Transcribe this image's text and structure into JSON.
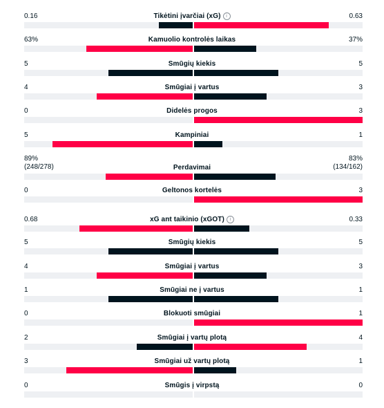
{
  "colors": {
    "winner": "#ff0046",
    "loser": "#00141e",
    "track": "#eef0f3"
  },
  "stats": [
    {
      "label": "Tikėtini įvarčiai (xG)",
      "home": "0.16",
      "away": "0.63",
      "home_val": 0.16,
      "away_val": 0.63,
      "info_icon": "info-icon",
      "info_glyph": "i"
    },
    {
      "label": "Kamuolio kontrolės laikas",
      "home": "63%",
      "away": "37%",
      "home_val": 63,
      "away_val": 37
    },
    {
      "label": "Smūgių kiekis",
      "home": "5",
      "away": "5",
      "home_val": 5,
      "away_val": 5
    },
    {
      "label": "Smūgiai į vartus",
      "home": "4",
      "away": "3",
      "home_val": 4,
      "away_val": 3
    },
    {
      "label": "Didelės progos",
      "home": "0",
      "away": "3",
      "home_val": 0,
      "away_val": 3
    },
    {
      "label": "Kampiniai",
      "home": "5",
      "away": "1",
      "home_val": 5,
      "away_val": 1
    },
    {
      "label": "Perdavimai",
      "home": "89%",
      "away": "83%",
      "home_sub": "(248/278)",
      "away_sub": "(134/162)",
      "home_val": 89,
      "away_val": 83,
      "two_line": true
    },
    {
      "label": "Geltonos kortelės",
      "home": "0",
      "away": "3",
      "home_val": 0,
      "away_val": 3
    },
    {
      "label": "xG ant taikinio (xGOT)",
      "home": "0.68",
      "away": "0.33",
      "home_val": 0.68,
      "away_val": 0.33,
      "info_icon": "info-icon",
      "info_glyph": "i"
    },
    {
      "label": "Smūgių kiekis",
      "home": "5",
      "away": "5",
      "home_val": 5,
      "away_val": 5
    },
    {
      "label": "Smūgiai į vartus",
      "home": "4",
      "away": "3",
      "home_val": 4,
      "away_val": 3
    },
    {
      "label": "Smūgiai ne į vartus",
      "home": "1",
      "away": "1",
      "home_val": 1,
      "away_val": 1
    },
    {
      "label": "Blokuoti smūgiai",
      "home": "0",
      "away": "1",
      "home_val": 0,
      "away_val": 1
    },
    {
      "label": "Smūgiai į vartų plotą",
      "home": "2",
      "away": "4",
      "home_val": 2,
      "away_val": 4
    },
    {
      "label": "Smūgiai už vartų plotą",
      "home": "3",
      "away": "1",
      "home_val": 3,
      "away_val": 1
    },
    {
      "label": "Smūgis į virpstą",
      "home": "0",
      "away": "0",
      "home_val": 0,
      "away_val": 0
    }
  ]
}
